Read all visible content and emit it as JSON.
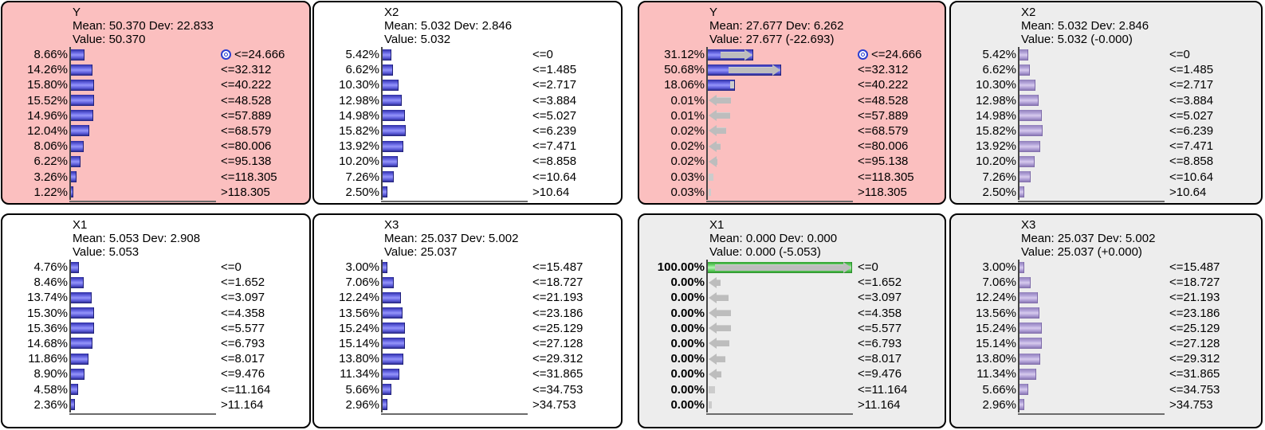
{
  "colors": {
    "panel_pink": "#fbbfbf",
    "panel_gray": "#ededed",
    "panel_white": "#ffffff",
    "bar_blue": "#5a5ad8",
    "bar_purple": "#ab9ad2",
    "bar_green_evidence": "#4cc44c",
    "change_arrow_gray": "#bdbdbd",
    "target_icon_blue": "#2b3fd1"
  },
  "panels": [
    {
      "id": "y-prior",
      "variable": "Y",
      "background": "pink",
      "bar_color": "blue",
      "bold_percents": false,
      "mean_dev": "Mean: 50.370 Dev: 22.833",
      "value_line": "Value: 50.370",
      "rows": [
        {
          "pct": "8.66%",
          "value": 8.66,
          "prior": null,
          "label": "<=24.666",
          "target_icon": true
        },
        {
          "pct": "14.26%",
          "value": 14.26,
          "prior": null,
          "label": "<=32.312"
        },
        {
          "pct": "15.80%",
          "value": 15.8,
          "prior": null,
          "label": "<=40.222"
        },
        {
          "pct": "15.52%",
          "value": 15.52,
          "prior": null,
          "label": "<=48.528"
        },
        {
          "pct": "14.96%",
          "value": 14.96,
          "prior": null,
          "label": "<=57.889"
        },
        {
          "pct": "12.04%",
          "value": 12.04,
          "prior": null,
          "label": "<=68.579"
        },
        {
          "pct": "8.06%",
          "value": 8.06,
          "prior": null,
          "label": "<=80.006"
        },
        {
          "pct": "6.22%",
          "value": 6.22,
          "prior": null,
          "label": "<=95.138"
        },
        {
          "pct": "3.26%",
          "value": 3.26,
          "prior": null,
          "label": "<=118.305"
        },
        {
          "pct": "1.22%",
          "value": 1.22,
          "prior": null,
          "label": ">118.305"
        }
      ]
    },
    {
      "id": "x2-prior",
      "variable": "X2",
      "background": "white",
      "bar_color": "blue",
      "bold_percents": false,
      "mean_dev": "Mean: 5.032 Dev: 2.846",
      "value_line": "Value: 5.032",
      "rows": [
        {
          "pct": "5.42%",
          "value": 5.42,
          "prior": null,
          "label": "<=0"
        },
        {
          "pct": "6.62%",
          "value": 6.62,
          "prior": null,
          "label": "<=1.485"
        },
        {
          "pct": "10.30%",
          "value": 10.3,
          "prior": null,
          "label": "<=2.717"
        },
        {
          "pct": "12.98%",
          "value": 12.98,
          "prior": null,
          "label": "<=3.884"
        },
        {
          "pct": "14.98%",
          "value": 14.98,
          "prior": null,
          "label": "<=5.027"
        },
        {
          "pct": "15.82%",
          "value": 15.82,
          "prior": null,
          "label": "<=6.239"
        },
        {
          "pct": "13.92%",
          "value": 13.92,
          "prior": null,
          "label": "<=7.471"
        },
        {
          "pct": "10.20%",
          "value": 10.2,
          "prior": null,
          "label": "<=8.858"
        },
        {
          "pct": "7.26%",
          "value": 7.26,
          "prior": null,
          "label": "<=10.64"
        },
        {
          "pct": "2.50%",
          "value": 2.5,
          "prior": null,
          "label": ">10.64"
        }
      ]
    },
    {
      "id": "x1-prior",
      "variable": "X1",
      "background": "white",
      "bar_color": "blue",
      "bold_percents": false,
      "mean_dev": "Mean: 5.053 Dev: 2.908",
      "value_line": "Value: 5.053",
      "rows": [
        {
          "pct": "4.76%",
          "value": 4.76,
          "prior": null,
          "label": "<=0"
        },
        {
          "pct": "8.46%",
          "value": 8.46,
          "prior": null,
          "label": "<=1.652"
        },
        {
          "pct": "13.74%",
          "value": 13.74,
          "prior": null,
          "label": "<=3.097"
        },
        {
          "pct": "15.30%",
          "value": 15.3,
          "prior": null,
          "label": "<=4.358"
        },
        {
          "pct": "15.36%",
          "value": 15.36,
          "prior": null,
          "label": "<=5.577"
        },
        {
          "pct": "14.68%",
          "value": 14.68,
          "prior": null,
          "label": "<=6.793"
        },
        {
          "pct": "11.86%",
          "value": 11.86,
          "prior": null,
          "label": "<=8.017"
        },
        {
          "pct": "8.90%",
          "value": 8.9,
          "prior": null,
          "label": "<=9.476"
        },
        {
          "pct": "4.58%",
          "value": 4.58,
          "prior": null,
          "label": "<=11.164"
        },
        {
          "pct": "2.36%",
          "value": 2.36,
          "prior": null,
          "label": ">11.164"
        }
      ]
    },
    {
      "id": "x3-prior",
      "variable": "X3",
      "background": "white",
      "bar_color": "blue",
      "bold_percents": false,
      "mean_dev": "Mean: 25.037 Dev: 5.002",
      "value_line": "Value: 25.037",
      "rows": [
        {
          "pct": "3.00%",
          "value": 3.0,
          "prior": null,
          "label": "<=15.487"
        },
        {
          "pct": "7.06%",
          "value": 7.06,
          "prior": null,
          "label": "<=18.727"
        },
        {
          "pct": "12.24%",
          "value": 12.24,
          "prior": null,
          "label": "<=21.193"
        },
        {
          "pct": "13.56%",
          "value": 13.56,
          "prior": null,
          "label": "<=23.186"
        },
        {
          "pct": "15.24%",
          "value": 15.24,
          "prior": null,
          "label": "<=25.129"
        },
        {
          "pct": "15.14%",
          "value": 15.14,
          "prior": null,
          "label": "<=27.128"
        },
        {
          "pct": "13.80%",
          "value": 13.8,
          "prior": null,
          "label": "<=29.312"
        },
        {
          "pct": "11.34%",
          "value": 11.34,
          "prior": null,
          "label": "<=31.865"
        },
        {
          "pct": "5.66%",
          "value": 5.66,
          "prior": null,
          "label": "<=34.753"
        },
        {
          "pct": "2.96%",
          "value": 2.96,
          "prior": null,
          "label": ">34.753"
        }
      ]
    },
    {
      "id": "y-posterior",
      "variable": "Y",
      "background": "pink",
      "bar_color": "blue",
      "bold_percents": false,
      "mean_dev": "Mean: 27.677 Dev: 6.262",
      "value_line": "Value: 27.677 (-22.693)",
      "rows": [
        {
          "pct": "31.12%",
          "value": 31.12,
          "prior": 8.66,
          "label": "<=24.666",
          "target_icon": true
        },
        {
          "pct": "50.68%",
          "value": 50.68,
          "prior": 14.26,
          "label": "<=32.312"
        },
        {
          "pct": "18.06%",
          "value": 18.06,
          "prior": 15.8,
          "label": "<=40.222"
        },
        {
          "pct": "0.01%",
          "value": 0.01,
          "prior": 15.52,
          "label": "<=48.528"
        },
        {
          "pct": "0.01%",
          "value": 0.01,
          "prior": 14.96,
          "label": "<=57.889"
        },
        {
          "pct": "0.02%",
          "value": 0.02,
          "prior": 12.04,
          "label": "<=68.579"
        },
        {
          "pct": "0.02%",
          "value": 0.02,
          "prior": 8.06,
          "label": "<=80.006"
        },
        {
          "pct": "0.02%",
          "value": 0.02,
          "prior": 6.22,
          "label": "<=95.138"
        },
        {
          "pct": "0.03%",
          "value": 0.03,
          "prior": 3.26,
          "label": "<=118.305"
        },
        {
          "pct": "0.03%",
          "value": 0.03,
          "prior": 1.22,
          "label": ">118.305"
        }
      ]
    },
    {
      "id": "x2-posterior",
      "variable": "X2",
      "background": "gray",
      "bar_color": "purple",
      "bold_percents": false,
      "mean_dev": "Mean: 5.032 Dev: 2.846",
      "value_line": "Value: 5.032 (-0.000)",
      "rows": [
        {
          "pct": "5.42%",
          "value": 5.42,
          "prior": null,
          "label": "<=0"
        },
        {
          "pct": "6.62%",
          "value": 6.62,
          "prior": null,
          "label": "<=1.485"
        },
        {
          "pct": "10.30%",
          "value": 10.3,
          "prior": null,
          "label": "<=2.717"
        },
        {
          "pct": "12.98%",
          "value": 12.98,
          "prior": null,
          "label": "<=3.884"
        },
        {
          "pct": "14.98%",
          "value": 14.98,
          "prior": null,
          "label": "<=5.027"
        },
        {
          "pct": "15.82%",
          "value": 15.82,
          "prior": null,
          "label": "<=6.239"
        },
        {
          "pct": "13.92%",
          "value": 13.92,
          "prior": null,
          "label": "<=7.471"
        },
        {
          "pct": "10.20%",
          "value": 10.2,
          "prior": null,
          "label": "<=8.858"
        },
        {
          "pct": "7.26%",
          "value": 7.26,
          "prior": null,
          "label": "<=10.64"
        },
        {
          "pct": "2.50%",
          "value": 2.5,
          "prior": null,
          "label": ">10.64"
        }
      ]
    },
    {
      "id": "x1-posterior",
      "variable": "X1",
      "background": "gray",
      "bar_color": "purple",
      "bold_percents": true,
      "mean_dev": "Mean: 0.000 Dev: 0.000",
      "value_line": "Value: 0.000 (-5.053)",
      "rows": [
        {
          "pct": "100.00%",
          "value": 100.0,
          "prior": 4.76,
          "label": "<=0",
          "evidence": true
        },
        {
          "pct": "0.00%",
          "value": 0.0,
          "prior": 8.46,
          "label": "<=1.652"
        },
        {
          "pct": "0.00%",
          "value": 0.0,
          "prior": 13.74,
          "label": "<=3.097"
        },
        {
          "pct": "0.00%",
          "value": 0.0,
          "prior": 15.3,
          "label": "<=4.358"
        },
        {
          "pct": "0.00%",
          "value": 0.0,
          "prior": 15.36,
          "label": "<=5.577"
        },
        {
          "pct": "0.00%",
          "value": 0.0,
          "prior": 14.68,
          "label": "<=6.793"
        },
        {
          "pct": "0.00%",
          "value": 0.0,
          "prior": 11.86,
          "label": "<=8.017"
        },
        {
          "pct": "0.00%",
          "value": 0.0,
          "prior": 8.9,
          "label": "<=9.476"
        },
        {
          "pct": "0.00%",
          "value": 0.0,
          "prior": 4.58,
          "label": "<=11.164"
        },
        {
          "pct": "0.00%",
          "value": 0.0,
          "prior": 2.36,
          "label": ">11.164"
        }
      ]
    },
    {
      "id": "x3-posterior",
      "variable": "X3",
      "background": "gray",
      "bar_color": "purple",
      "bold_percents": false,
      "mean_dev": "Mean: 25.037 Dev: 5.002",
      "value_line": "Value: 25.037 (+0.000)",
      "rows": [
        {
          "pct": "3.00%",
          "value": 3.0,
          "prior": null,
          "label": "<=15.487"
        },
        {
          "pct": "7.06%",
          "value": 7.06,
          "prior": null,
          "label": "<=18.727"
        },
        {
          "pct": "12.24%",
          "value": 12.24,
          "prior": null,
          "label": "<=21.193"
        },
        {
          "pct": "13.56%",
          "value": 13.56,
          "prior": null,
          "label": "<=23.186"
        },
        {
          "pct": "15.24%",
          "value": 15.24,
          "prior": null,
          "label": "<=25.129"
        },
        {
          "pct": "15.14%",
          "value": 15.14,
          "prior": null,
          "label": "<=27.128"
        },
        {
          "pct": "13.80%",
          "value": 13.8,
          "prior": null,
          "label": "<=29.312"
        },
        {
          "pct": "11.34%",
          "value": 11.34,
          "prior": null,
          "label": "<=31.865"
        },
        {
          "pct": "5.66%",
          "value": 5.66,
          "prior": null,
          "label": "<=34.753"
        },
        {
          "pct": "2.96%",
          "value": 2.96,
          "prior": null,
          "label": ">34.753"
        }
      ]
    }
  ]
}
